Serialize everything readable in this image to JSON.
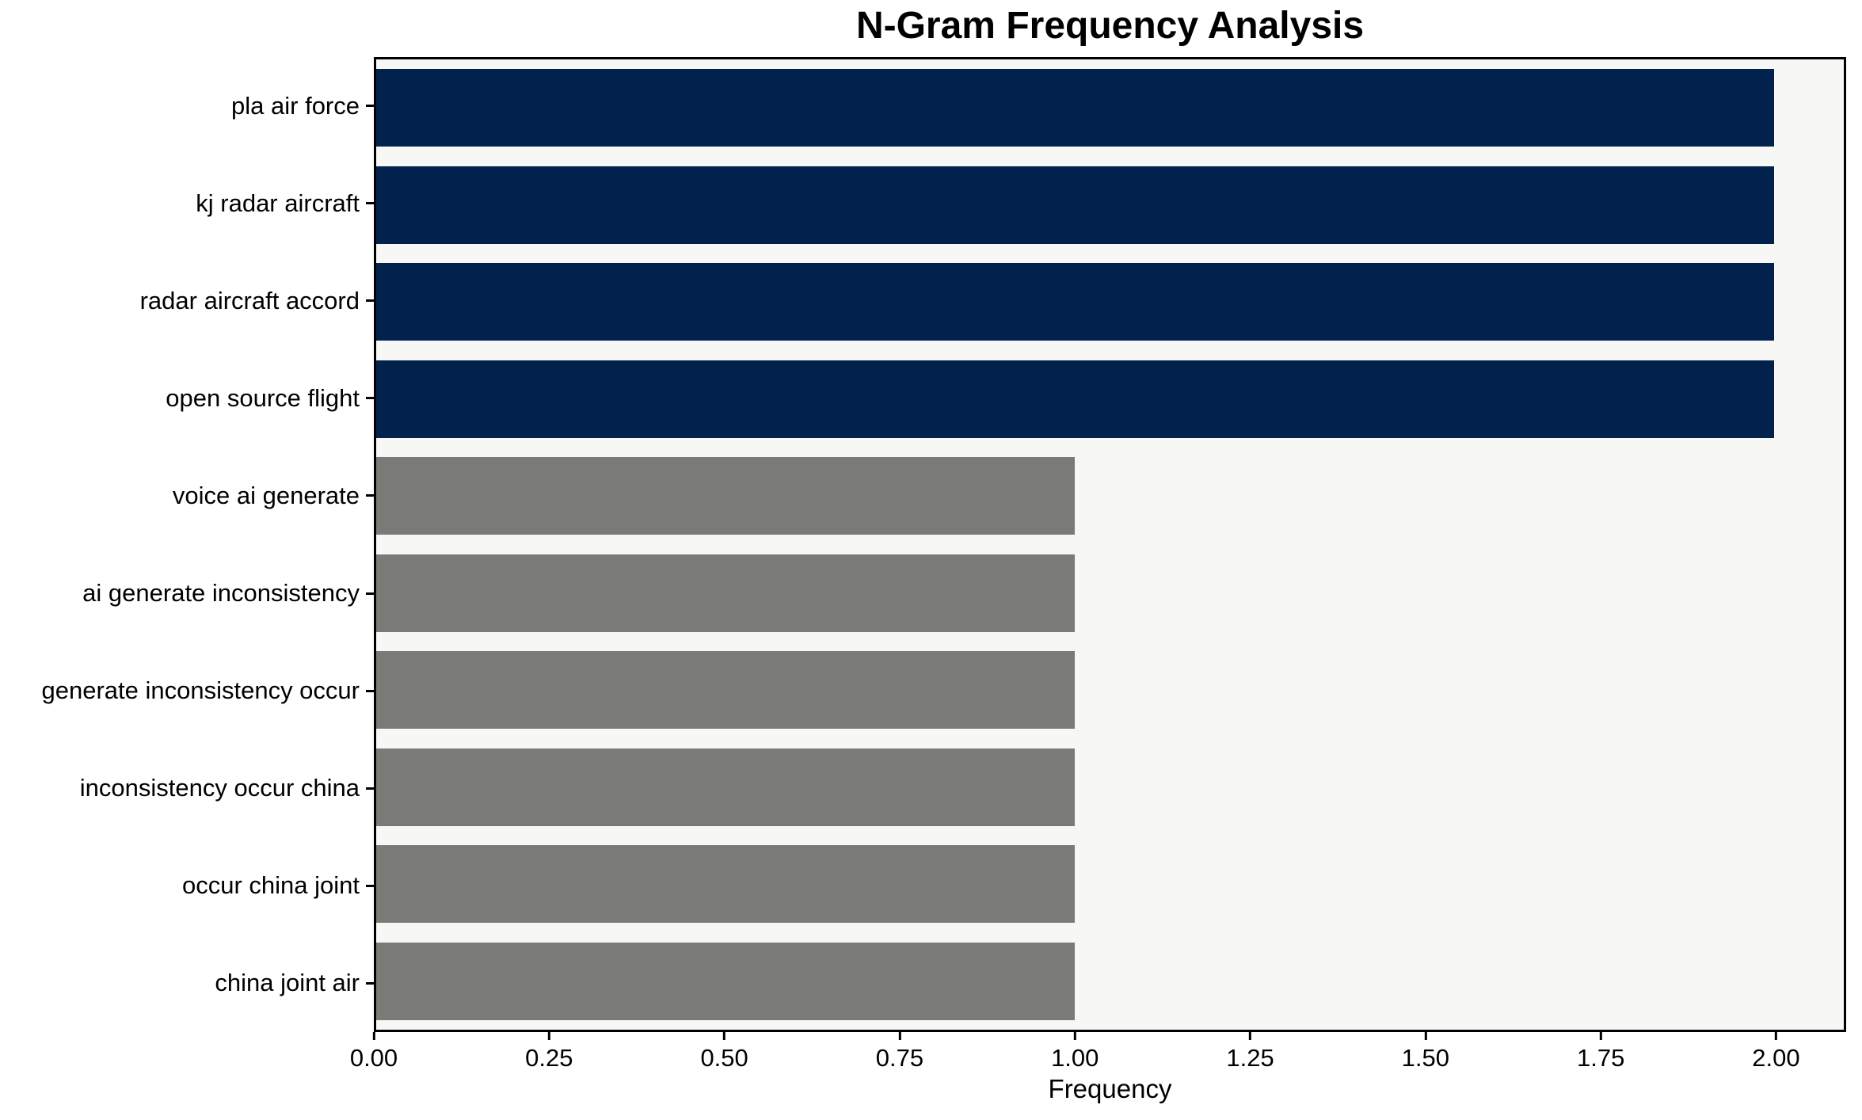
{
  "chart_data": {
    "type": "bar",
    "orientation": "horizontal",
    "title": "N-Gram Frequency Analysis",
    "xlabel": "Frequency",
    "ylabel": "",
    "categories": [
      "pla air force",
      "kj radar aircraft",
      "radar aircraft accord",
      "open source flight",
      "voice ai generate",
      "ai generate inconsistency",
      "generate inconsistency occur",
      "inconsistency occur china",
      "occur china joint",
      "china joint air"
    ],
    "values": [
      2,
      2,
      2,
      2,
      1,
      1,
      1,
      1,
      1,
      1
    ],
    "bar_colors": [
      "#02224d",
      "#02224d",
      "#02224d",
      "#02224d",
      "#7a7a77",
      "#7a7a77",
      "#7a7a77",
      "#7a7a77",
      "#7a7a77",
      "#7a7a77"
    ],
    "xlim": [
      0,
      2.1
    ],
    "xticks": [
      "0.00",
      "0.25",
      "0.50",
      "0.75",
      "1.00",
      "1.25",
      "1.50",
      "1.75",
      "2.00"
    ],
    "xtick_values": [
      0,
      0.25,
      0.5,
      0.75,
      1.0,
      1.25,
      1.5,
      1.75,
      2.0
    ],
    "grid": false,
    "legend": null,
    "bar_height_fraction": 0.8,
    "colors": {
      "highlight_bar": "#02224d",
      "default_bar": "#7a7a77",
      "plot_background": "#f7f7f6",
      "figure_background": "#ffffff",
      "spine": "#000000"
    }
  }
}
